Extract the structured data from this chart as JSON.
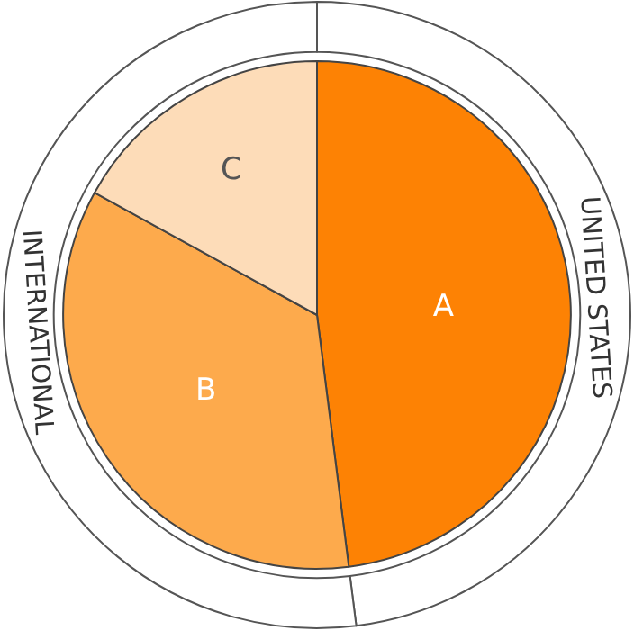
{
  "chart_data": {
    "type": "pie",
    "categories": [
      "A",
      "B",
      "C"
    ],
    "series": [
      {
        "values": [
          48,
          35,
          17
        ],
        "colors": [
          "#fd8204",
          "#fdaa4c",
          "#fddcb8"
        ]
      },
      {
        "type": "donut",
        "values": [
          48,
          52,
          null
        ],
        "value_labels": [
          "UNITED STATES",
          "INTERNATIONAL",
          null
        ],
        "colors": [
          "#ffffff",
          "#ffffff",
          "#ffffff"
        ]
      }
    ]
  }
}
